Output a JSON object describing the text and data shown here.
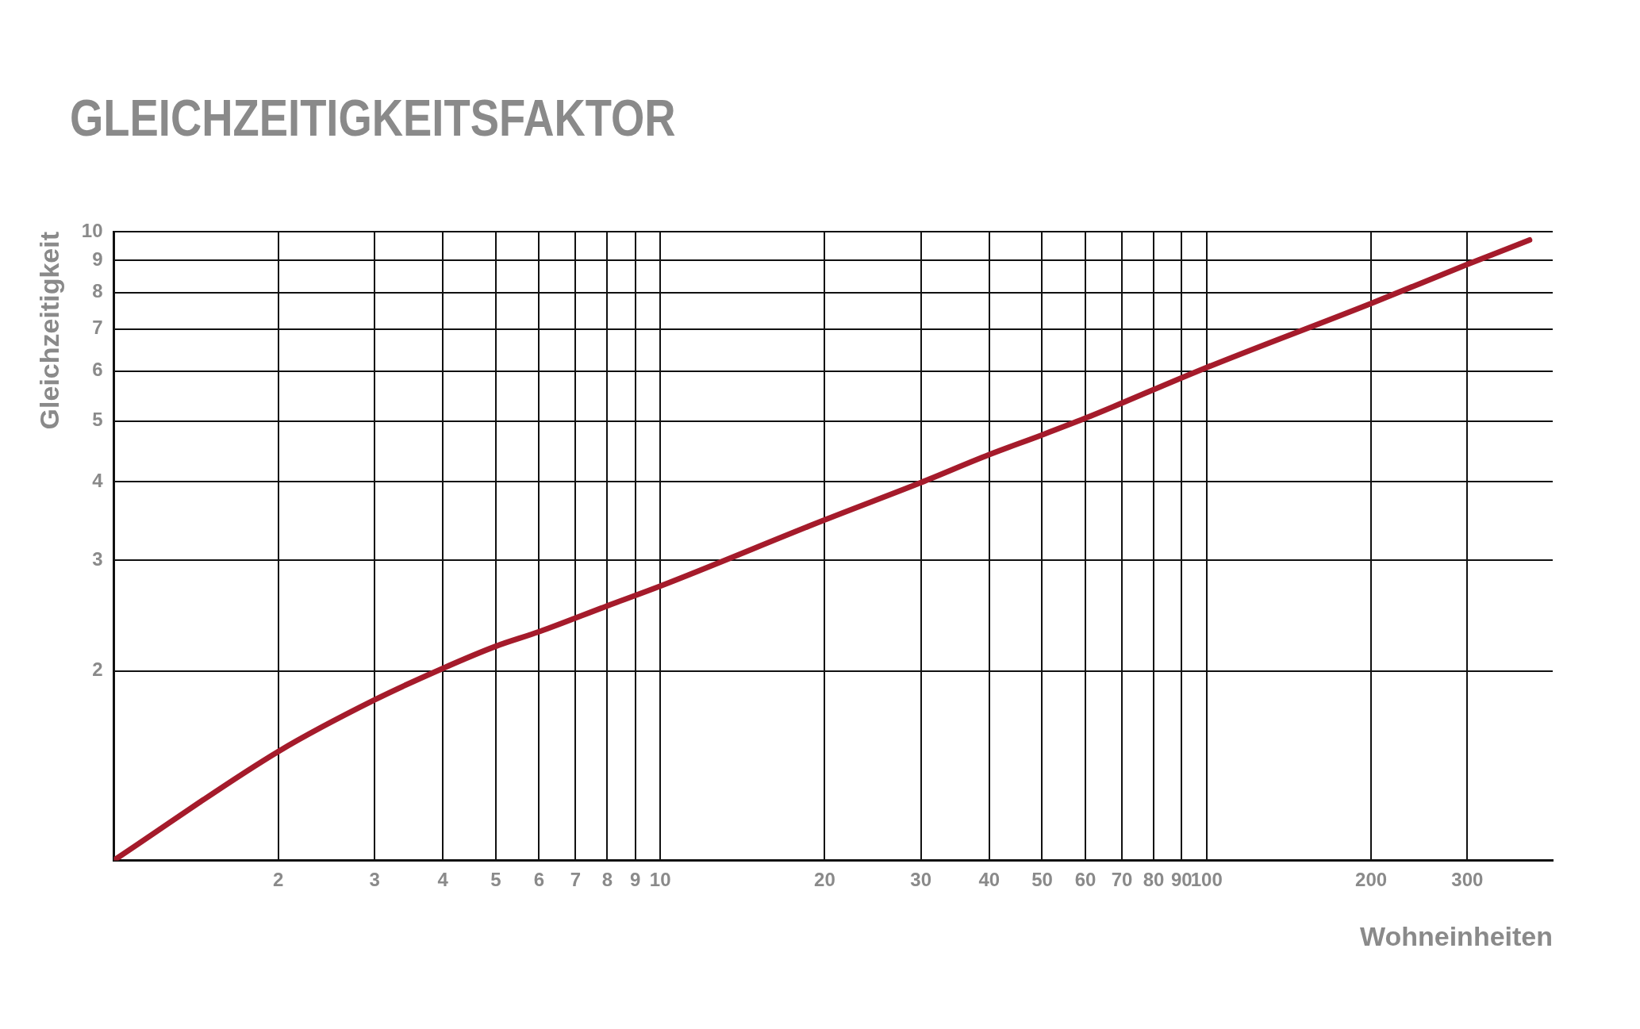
{
  "chart_data": {
    "type": "line",
    "title": "GLEICHZEITIGKEITSFAKTOR",
    "xlabel": "Wohneinheiten",
    "ylabel": "Gleichzeitigkeit",
    "log": "xy",
    "x": [
      1,
      2,
      3,
      4,
      5,
      6,
      8,
      10,
      20,
      30,
      40,
      50,
      60,
      100,
      200,
      300,
      390
    ],
    "series": [
      {
        "color": "#a51b2b",
        "values": [
          1,
          1.49,
          1.8,
          2.02,
          2.19,
          2.31,
          2.54,
          2.73,
          3.48,
          3.99,
          4.42,
          4.75,
          5.05,
          6.08,
          7.69,
          8.87,
          9.7
        ]
      }
    ],
    "xlim": [
      1,
      430
    ],
    "xticks": [
      2,
      3,
      4,
      5,
      6,
      7,
      8,
      9,
      10,
      20,
      30,
      40,
      50,
      60,
      70,
      80,
      90,
      100,
      200,
      300
    ],
    "ylim": [
      1,
      10
    ],
    "yticks": [
      2,
      3,
      4,
      5,
      6,
      7,
      8,
      9,
      10
    ],
    "grid": true,
    "legend": false,
    "marker": "none",
    "line_style": "solid"
  }
}
